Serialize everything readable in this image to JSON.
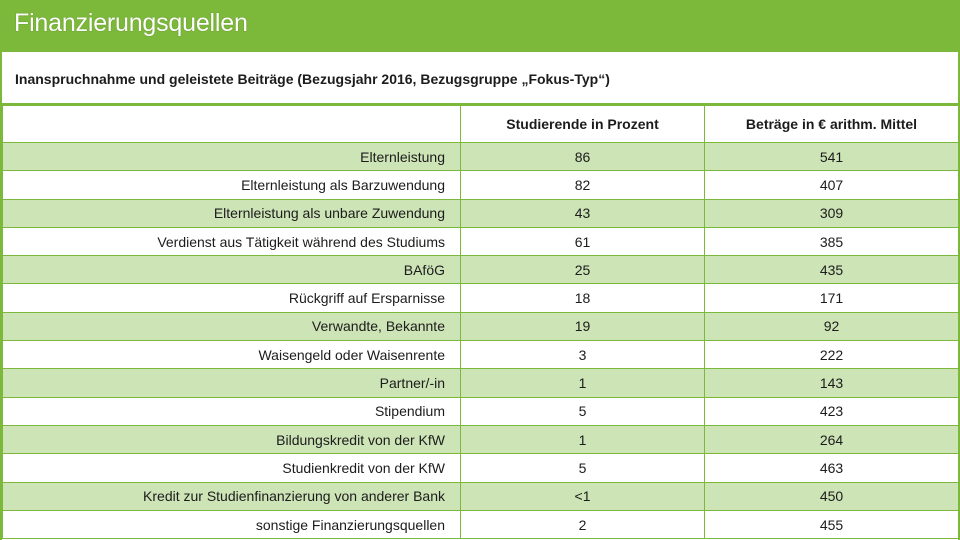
{
  "page": {
    "title": "Finanzierungsquellen",
    "subtitle": "Inanspruchnahme und geleistete Beiträge (Bezugsjahr 2016, Bezugsgruppe „Fokus-Typ“)"
  },
  "table": {
    "headers": [
      "",
      "Studierende in Prozent",
      "Beträge in € arithm. Mittel"
    ],
    "rows": [
      {
        "label": "Elternleistung",
        "percent": "86",
        "amount": "541"
      },
      {
        "label": "Elternleistung als Barzuwendung",
        "percent": "82",
        "amount": "407"
      },
      {
        "label": "Elternleistung als unbare Zuwendung",
        "percent": "43",
        "amount": "309"
      },
      {
        "label": "Verdienst aus Tätigkeit während des Studiums",
        "percent": "61",
        "amount": "385"
      },
      {
        "label": "BAföG",
        "percent": "25",
        "amount": "435"
      },
      {
        "label": "Rückgriff auf Ersparnisse",
        "percent": "18",
        "amount": "171"
      },
      {
        "label": "Verwandte, Bekannte",
        "percent": "19",
        "amount": "92"
      },
      {
        "label": "Waisengeld oder Waisenrente",
        "percent": "3",
        "amount": "222"
      },
      {
        "label": "Partner/-in",
        "percent": "1",
        "amount": "143"
      },
      {
        "label": "Stipendium",
        "percent": "5",
        "amount": "423"
      },
      {
        "label": "Bildungskredit von der KfW",
        "percent": "1",
        "amount": "264"
      },
      {
        "label": "Studienkredit von der KfW",
        "percent": "5",
        "amount": "463"
      },
      {
        "label": "Kredit zur Studienfinanzierung von anderer Bank",
        "percent": "<1",
        "amount": "450"
      },
      {
        "label": "sonstige Finanzierungsquellen",
        "percent": "2",
        "amount": "455"
      }
    ]
  },
  "colors": {
    "accent": "#7cb83a",
    "row_shade": "#cde4b6",
    "text": "#1c1c1c"
  }
}
